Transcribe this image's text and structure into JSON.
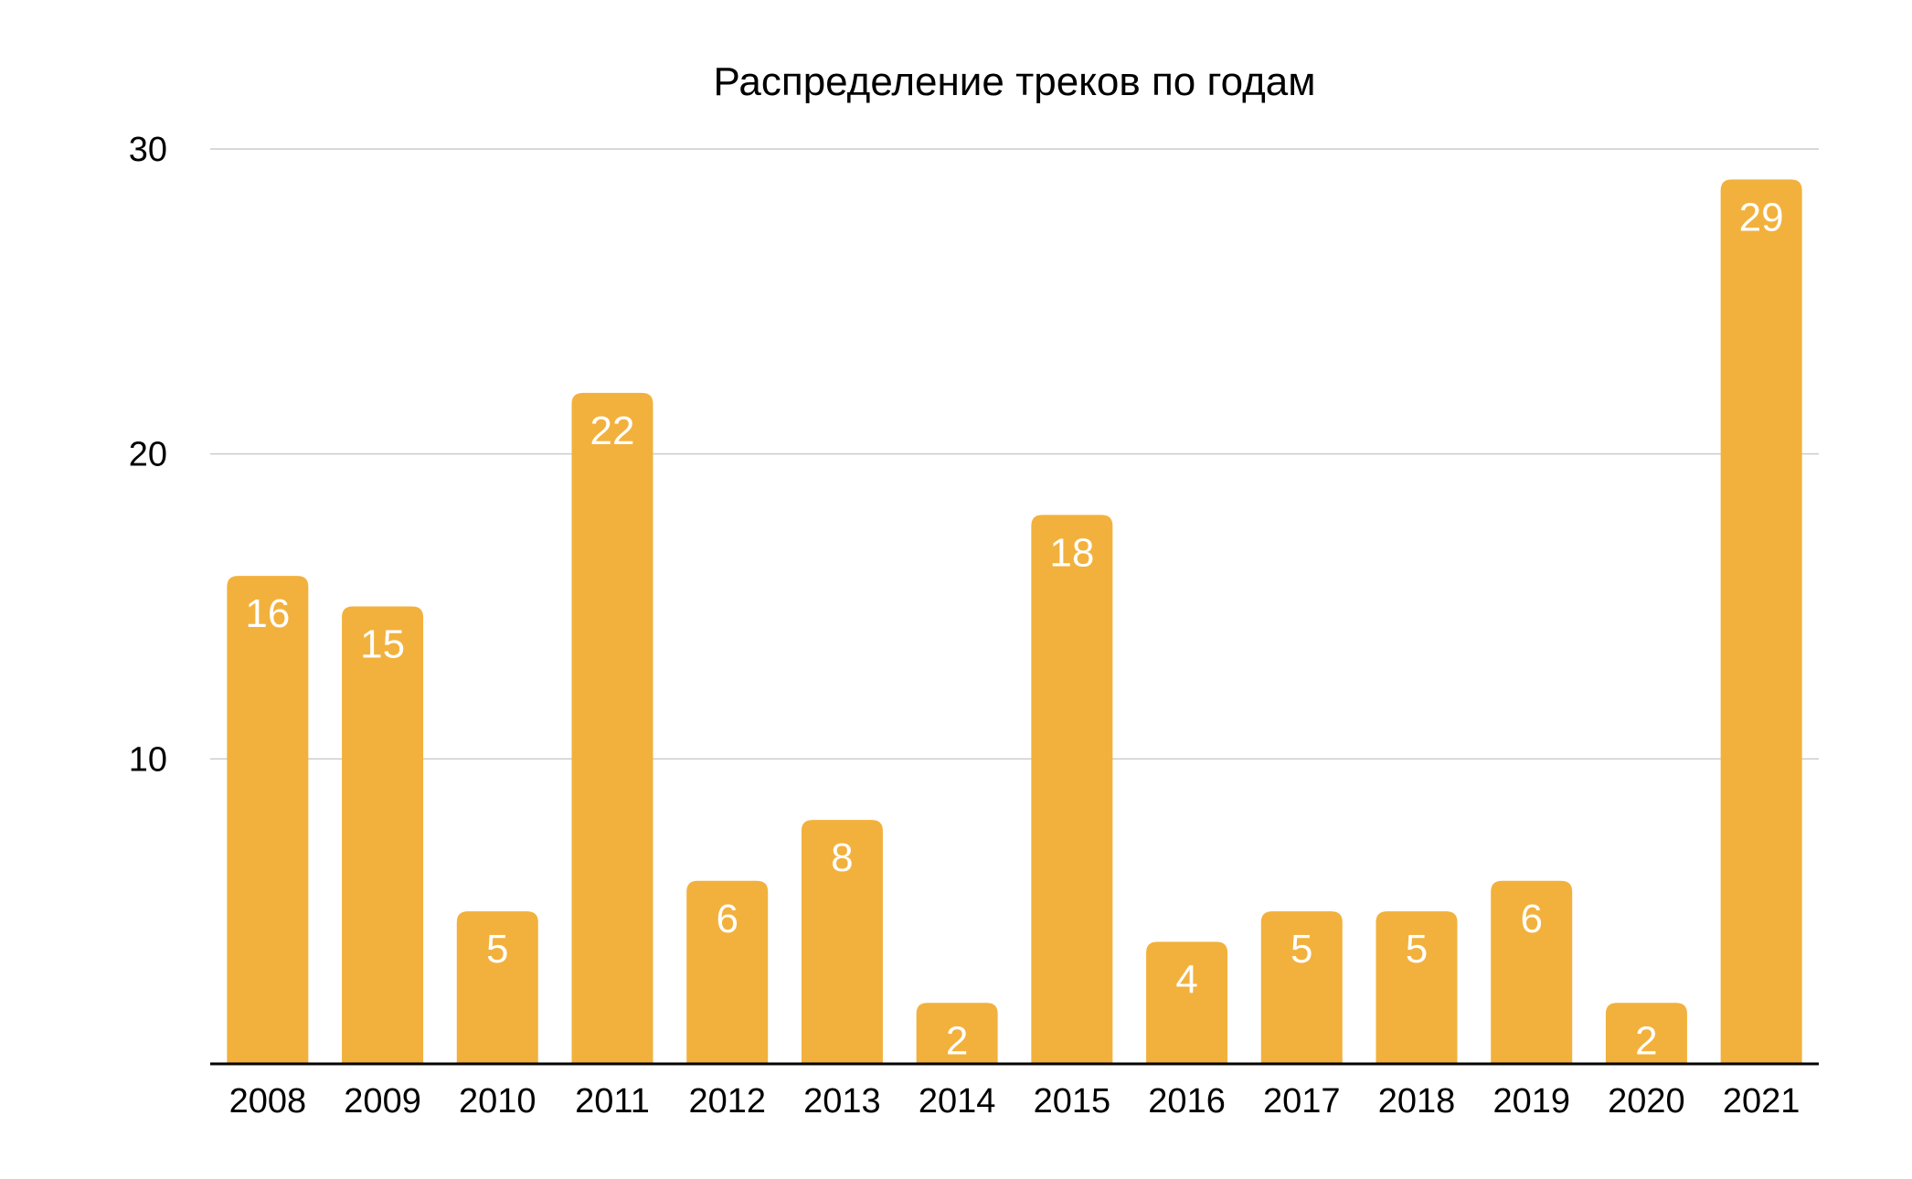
{
  "chart_data": {
    "type": "bar",
    "title": "Распределение треков по годам",
    "xlabel": "",
    "ylabel": "",
    "categories": [
      "2008",
      "2009",
      "2010",
      "2011",
      "2012",
      "2013",
      "2014",
      "2015",
      "2016",
      "2017",
      "2018",
      "2019",
      "2020",
      "2021"
    ],
    "values": [
      16,
      15,
      5,
      22,
      6,
      8,
      2,
      18,
      4,
      5,
      5,
      6,
      2,
      29
    ],
    "ylim": [
      0,
      30
    ],
    "yticks": [
      10,
      20,
      30
    ],
    "grid": true,
    "legend": "none",
    "data_labels": "inside-top",
    "colors": {
      "bar": "#F2B13D",
      "label": "#FFFFFF",
      "grid": "#CCCCCC",
      "axis": "#000000"
    }
  }
}
